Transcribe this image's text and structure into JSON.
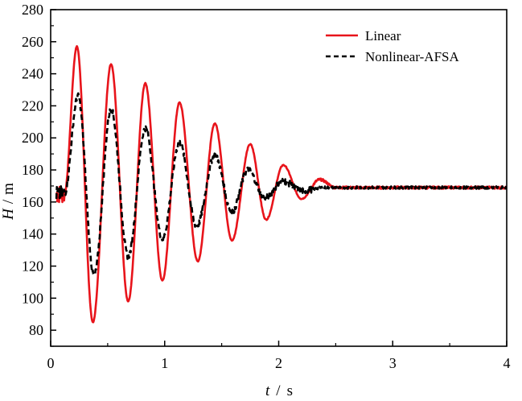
{
  "chart_data": {
    "type": "line",
    "title": "",
    "xlabel": {
      "var": "t",
      "unit": "s"
    },
    "ylabel": {
      "var": "H",
      "unit": "m"
    },
    "xlim": [
      0,
      4
    ],
    "ylim": [
      70,
      280
    ],
    "xticks": [
      0,
      1,
      2,
      3,
      4
    ],
    "yticks": [
      80,
      100,
      120,
      140,
      160,
      180,
      200,
      220,
      240,
      260,
      280
    ],
    "grid": false,
    "legend_position": "top-right",
    "series": [
      {
        "name": "Linear",
        "color": "#e8141b",
        "style": "solid",
        "initial": {
          "t_end": 0.12,
          "value": 165,
          "noise": 6
        },
        "keypoints_t": [
          0.12,
          0.23,
          0.37,
          0.53,
          0.68,
          0.83,
          0.98,
          1.13,
          1.29,
          1.44,
          1.59,
          1.75,
          1.89,
          2.04,
          2.2,
          2.36,
          2.5,
          4.0
        ],
        "keypoints_H": [
          165,
          257,
          85,
          246,
          98,
          234,
          111,
          222,
          123,
          209,
          136,
          196,
          149,
          183,
          162,
          174,
          169,
          169
        ]
      },
      {
        "name": "Nonlinear-AFSA",
        "color": "#000000",
        "style": "dashed",
        "initial": {
          "t_end": 0.12,
          "value": 165,
          "noise": 5
        },
        "keypoints_t": [
          0.12,
          0.24,
          0.38,
          0.53,
          0.68,
          0.83,
          0.98,
          1.13,
          1.28,
          1.44,
          1.59,
          1.73,
          1.88,
          2.04,
          2.2,
          2.4,
          4.0
        ],
        "keypoints_H": [
          165,
          226,
          114,
          218,
          126,
          206,
          137,
          197,
          145,
          189,
          154,
          180,
          163,
          173,
          167,
          169,
          169
        ]
      }
    ]
  }
}
